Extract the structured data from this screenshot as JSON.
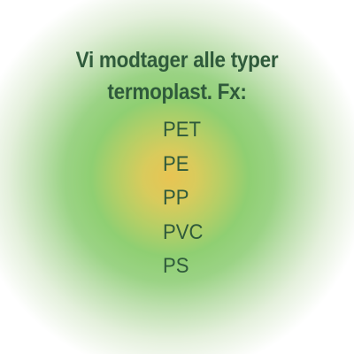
{
  "heading": {
    "line1": "Vi modtager alle typer",
    "line2": "termoplast. Fx:"
  },
  "plastics": [
    "PET",
    "PE",
    "PP",
    "PVC",
    "PS"
  ]
}
